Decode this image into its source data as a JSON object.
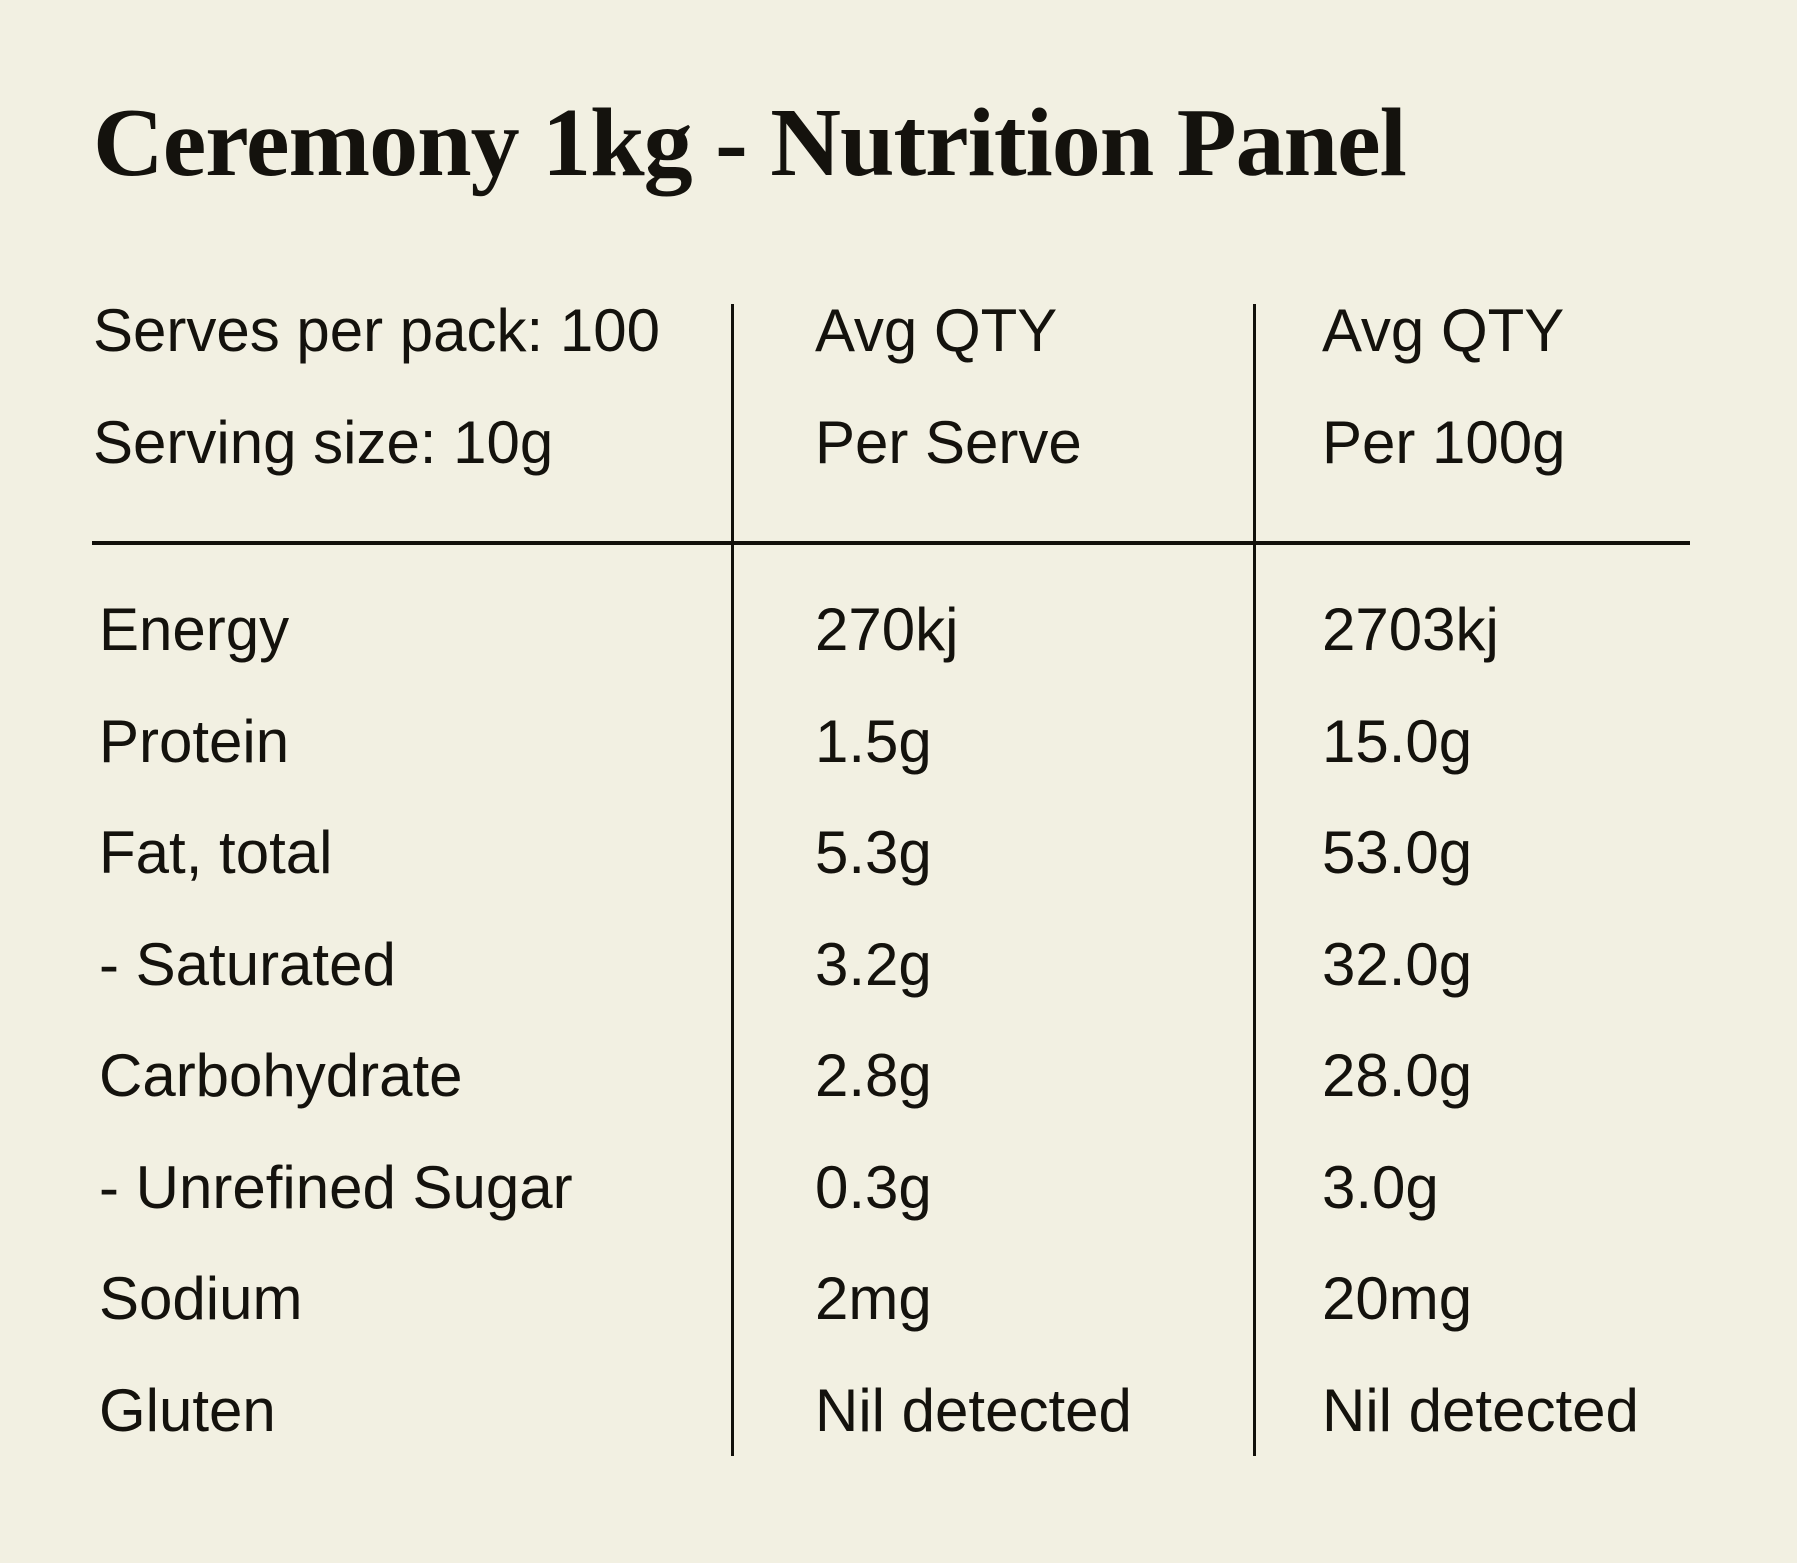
{
  "title": "Ceremony 1kg - Nutrition Panel",
  "header": {
    "serves_per_pack": "Serves per pack: 100",
    "serving_size": "Serving size: 10g",
    "col_per_serve": {
      "line1": "Avg QTY",
      "line2": "Per Serve"
    },
    "col_per_100g": {
      "line1": "Avg QTY",
      "line2": "Per 100g"
    }
  },
  "rows": [
    {
      "nutrient": "Energy",
      "per_serve": "270kj",
      "per_100g": "2703kj"
    },
    {
      "nutrient": "Protein",
      "per_serve": "1.5g",
      "per_100g": "15.0g"
    },
    {
      "nutrient": "Fat, total",
      "per_serve": "5.3g",
      "per_100g": "53.0g"
    },
    {
      "nutrient": "- Saturated",
      "per_serve": "3.2g",
      "per_100g": "32.0g"
    },
    {
      "nutrient": "Carbohydrate",
      "per_serve": "2.8g",
      "per_100g": "28.0g"
    },
    {
      "nutrient": "- Unrefined Sugar",
      "per_serve": "0.3g",
      "per_100g": "3.0g"
    },
    {
      "nutrient": "Sodium",
      "per_serve": "2mg",
      "per_100g": "20mg"
    },
    {
      "nutrient": "Gluten",
      "per_serve": "Nil detected",
      "per_100g": "Nil detected"
    }
  ],
  "colors": {
    "bg": "#F2F0E2",
    "fg": "#14120D",
    "line": "#12100B"
  }
}
